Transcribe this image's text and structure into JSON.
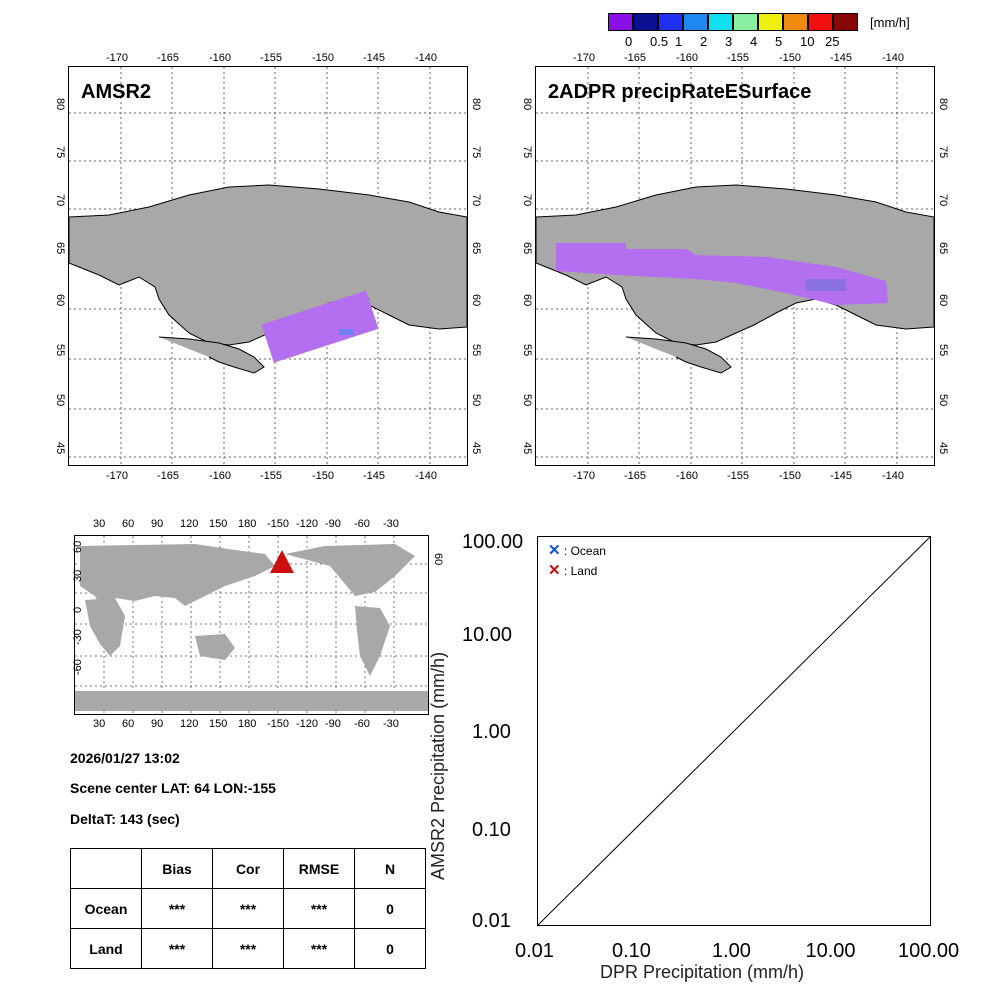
{
  "colorbar": {
    "unit": "[mm/h]",
    "labels": [
      "0",
      "0.5",
      "1",
      "2",
      "3",
      "4",
      "5",
      "10",
      "25"
    ],
    "colors": [
      "#8a10e8",
      "#0a1090",
      "#2030f0",
      "#1c88f0",
      "#10e0f0",
      "#88f0a0",
      "#f0f010",
      "#f08a10",
      "#f01010",
      "#880808"
    ]
  },
  "maps": {
    "left_title": "AMSR2",
    "right_title": "2ADPR precipRateESurface",
    "lon_ticks": [
      "-170",
      "-165",
      "-160",
      "-155",
      "-150",
      "-145",
      "-140"
    ],
    "lat_ticks": [
      "80",
      "75",
      "70",
      "65",
      "60",
      "55",
      "50",
      "45"
    ],
    "land_color": "#a8a8a8",
    "precip_color": "#b46ef0"
  },
  "globe": {
    "top_lon_ticks": [
      "30",
      "60",
      "90",
      "120",
      "150",
      "180",
      "-150",
      "-120",
      "-90",
      "-60",
      "-30"
    ],
    "lat_ticks": [
      "60",
      "30",
      "0",
      "-30",
      "-60"
    ],
    "marker_color": "#cc1010"
  },
  "info": {
    "datetime": "2026/01/27 13:02",
    "scene_center": "Scene center LAT: 64   LON:-155",
    "deltat": "DeltaT:  143 (sec)"
  },
  "stats_table": {
    "headers": [
      "",
      "Bias",
      "Cor",
      "RMSE",
      "N"
    ],
    "rows": [
      [
        "Ocean",
        "***",
        "***",
        "***",
        "0"
      ],
      [
        "Land",
        "***",
        "***",
        "***",
        "0"
      ]
    ]
  },
  "scatter": {
    "y_ticks": [
      "100.00",
      "10.00",
      "1.00",
      "0.10",
      "0.01"
    ],
    "x_ticks": [
      "0.01",
      "0.10",
      "1.00",
      "10.00",
      "100.00"
    ],
    "xlabel": "DPR Precipitation (mm/h)",
    "ylabel": "AMSR2 Precipitation (mm/h)",
    "legend": [
      {
        "symbol": "✕",
        "label": ": Ocean",
        "color": "#1050d0"
      },
      {
        "symbol": "✕",
        "label": ": Land",
        "color": "#c01010"
      }
    ]
  }
}
